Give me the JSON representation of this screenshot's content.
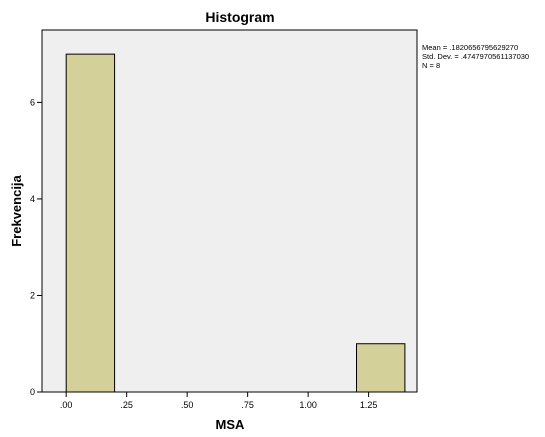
{
  "chart_data": {
    "type": "bar",
    "title": "Histogram",
    "xlabel": "MSA",
    "ylabel": "Frekvencija",
    "xlim": [
      -0.1,
      1.45
    ],
    "ylim": [
      0,
      7.5
    ],
    "x_ticks": [
      0.0,
      0.25,
      0.5,
      0.75,
      1.0,
      1.25
    ],
    "x_tick_labels": [
      ".00",
      ".25",
      ".50",
      ".75",
      "1.00",
      "1.25"
    ],
    "y_ticks": [
      0,
      2,
      4,
      6
    ],
    "y_tick_labels": [
      "0",
      "2",
      "4",
      "6"
    ],
    "bins": [
      {
        "x0": 0.0,
        "x1": 0.2,
        "count": 7
      },
      {
        "x0": 1.2,
        "x1": 1.4,
        "count": 1
      }
    ],
    "bar_color": "#d4d09a",
    "plot_background": "#efefef",
    "grid": false,
    "stats": {
      "mean": "Mean = .1820656795629270",
      "std_dev": "Std. Dev. = .4747970561137030",
      "n": "N = 8"
    },
    "stats_placement": "top-right"
  }
}
